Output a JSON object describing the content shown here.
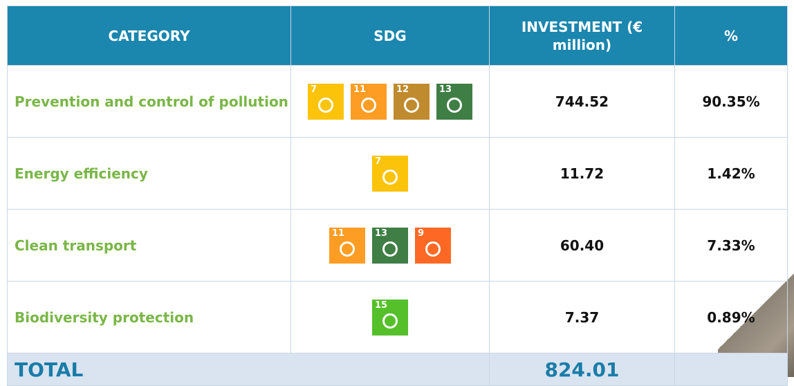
{
  "table": {
    "header": [
      "CATEGORY",
      "SDG",
      "INVESTMENT (€ million)",
      "%"
    ],
    "rows": [
      {
        "category": "Prevention and control of pollution",
        "sdgs": [
          {
            "number": "7",
            "color": "#fcc30b"
          },
          {
            "number": "11",
            "color": "#fd9d24"
          },
          {
            "number": "12",
            "color": "#bf8b2e"
          },
          {
            "number": "13",
            "color": "#3f7e44"
          }
        ],
        "investment": "744.52",
        "percent": "90.35%"
      },
      {
        "category": "Energy efficiency",
        "sdgs": [
          {
            "number": "7",
            "color": "#fcc30b"
          }
        ],
        "investment": "11.72",
        "percent": "1.42%"
      },
      {
        "category": "Clean transport",
        "sdgs": [
          {
            "number": "11",
            "color": "#fd9d24"
          },
          {
            "number": "13",
            "color": "#3f7e44"
          },
          {
            "number": "9",
            "color": "#fd6925"
          }
        ],
        "investment": "60.40",
        "percent": "7.33%"
      },
      {
        "category": "Biodiversity protection",
        "sdgs": [
          {
            "number": "15",
            "color": "#56c02b"
          }
        ],
        "investment": "7.37",
        "percent": "0.89%"
      }
    ],
    "total": {
      "label": "TOTAL",
      "investment": "824.01"
    }
  }
}
